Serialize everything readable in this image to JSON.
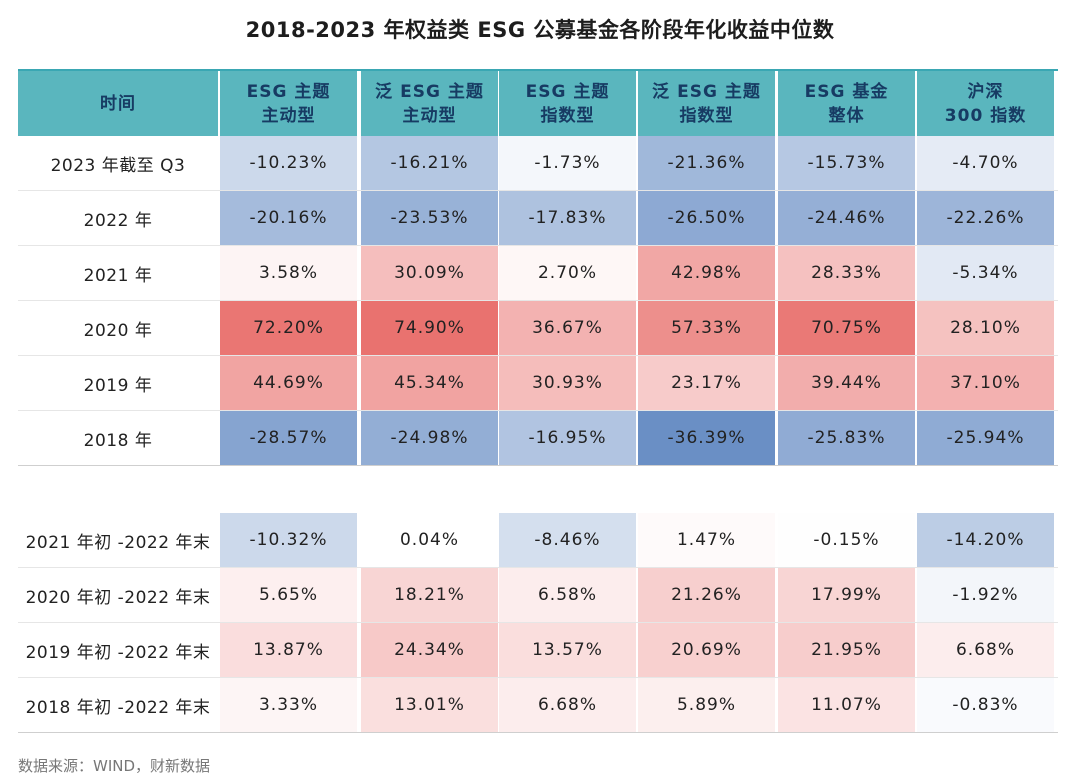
{
  "title": "2018-2023 年权益类 ESG 公募基金各阶段年化收益中位数",
  "source": "数据来源：WIND，财新数据",
  "chart_data": {
    "type": "table",
    "row_header_label": "时间",
    "columns": [
      [
        "ESG 主题",
        "主动型"
      ],
      [
        "泛 ESG 主题",
        "主动型"
      ],
      [
        "ESG 主题",
        "指数型"
      ],
      [
        "泛 ESG 主题",
        "指数型"
      ],
      [
        "ESG 基金",
        "整体"
      ],
      [
        "沪深",
        "300 指数"
      ]
    ],
    "sections": [
      {
        "rows": [
          {
            "label": "2023 年截至 Q3",
            "values": [
              -10.23,
              -16.21,
              -1.73,
              -21.36,
              -15.73,
              -4.7
            ]
          },
          {
            "label": "2022 年",
            "values": [
              -20.16,
              -23.53,
              -17.83,
              -26.5,
              -24.46,
              -22.26
            ]
          },
          {
            "label": "2021 年",
            "values": [
              3.58,
              30.09,
              2.7,
              42.98,
              28.33,
              -5.34
            ]
          },
          {
            "label": "2020 年",
            "values": [
              72.2,
              74.9,
              36.67,
              57.33,
              70.75,
              28.1
            ]
          },
          {
            "label": "2019 年",
            "values": [
              44.69,
              45.34,
              30.93,
              23.17,
              39.44,
              37.1
            ]
          },
          {
            "label": "2018 年",
            "values": [
              -28.57,
              -24.98,
              -16.95,
              -36.39,
              -25.83,
              -25.94
            ]
          }
        ]
      },
      {
        "rows": [
          {
            "label": "2021 年初 -2022 年末",
            "values": [
              -10.32,
              0.04,
              -8.46,
              1.47,
              -0.15,
              -14.2
            ]
          },
          {
            "label": "2020 年初 -2022 年末",
            "values": [
              5.65,
              18.21,
              6.58,
              21.26,
              17.99,
              -1.92
            ]
          },
          {
            "label": "2019 年初 -2022 年末",
            "values": [
              13.87,
              24.34,
              13.57,
              20.69,
              21.95,
              6.68
            ]
          },
          {
            "label": "2018 年初 -2022 年末",
            "values": [
              3.33,
              13.01,
              6.68,
              5.89,
              11.07,
              -0.83
            ]
          }
        ]
      }
    ],
    "value_suffix": "%",
    "colors": {
      "header_bg": "#5ab6be",
      "header_text": "#173b63",
      "positive_max": "#e9726f",
      "negative_max": "#6a8fc5",
      "neutral": "#ffffff"
    }
  }
}
